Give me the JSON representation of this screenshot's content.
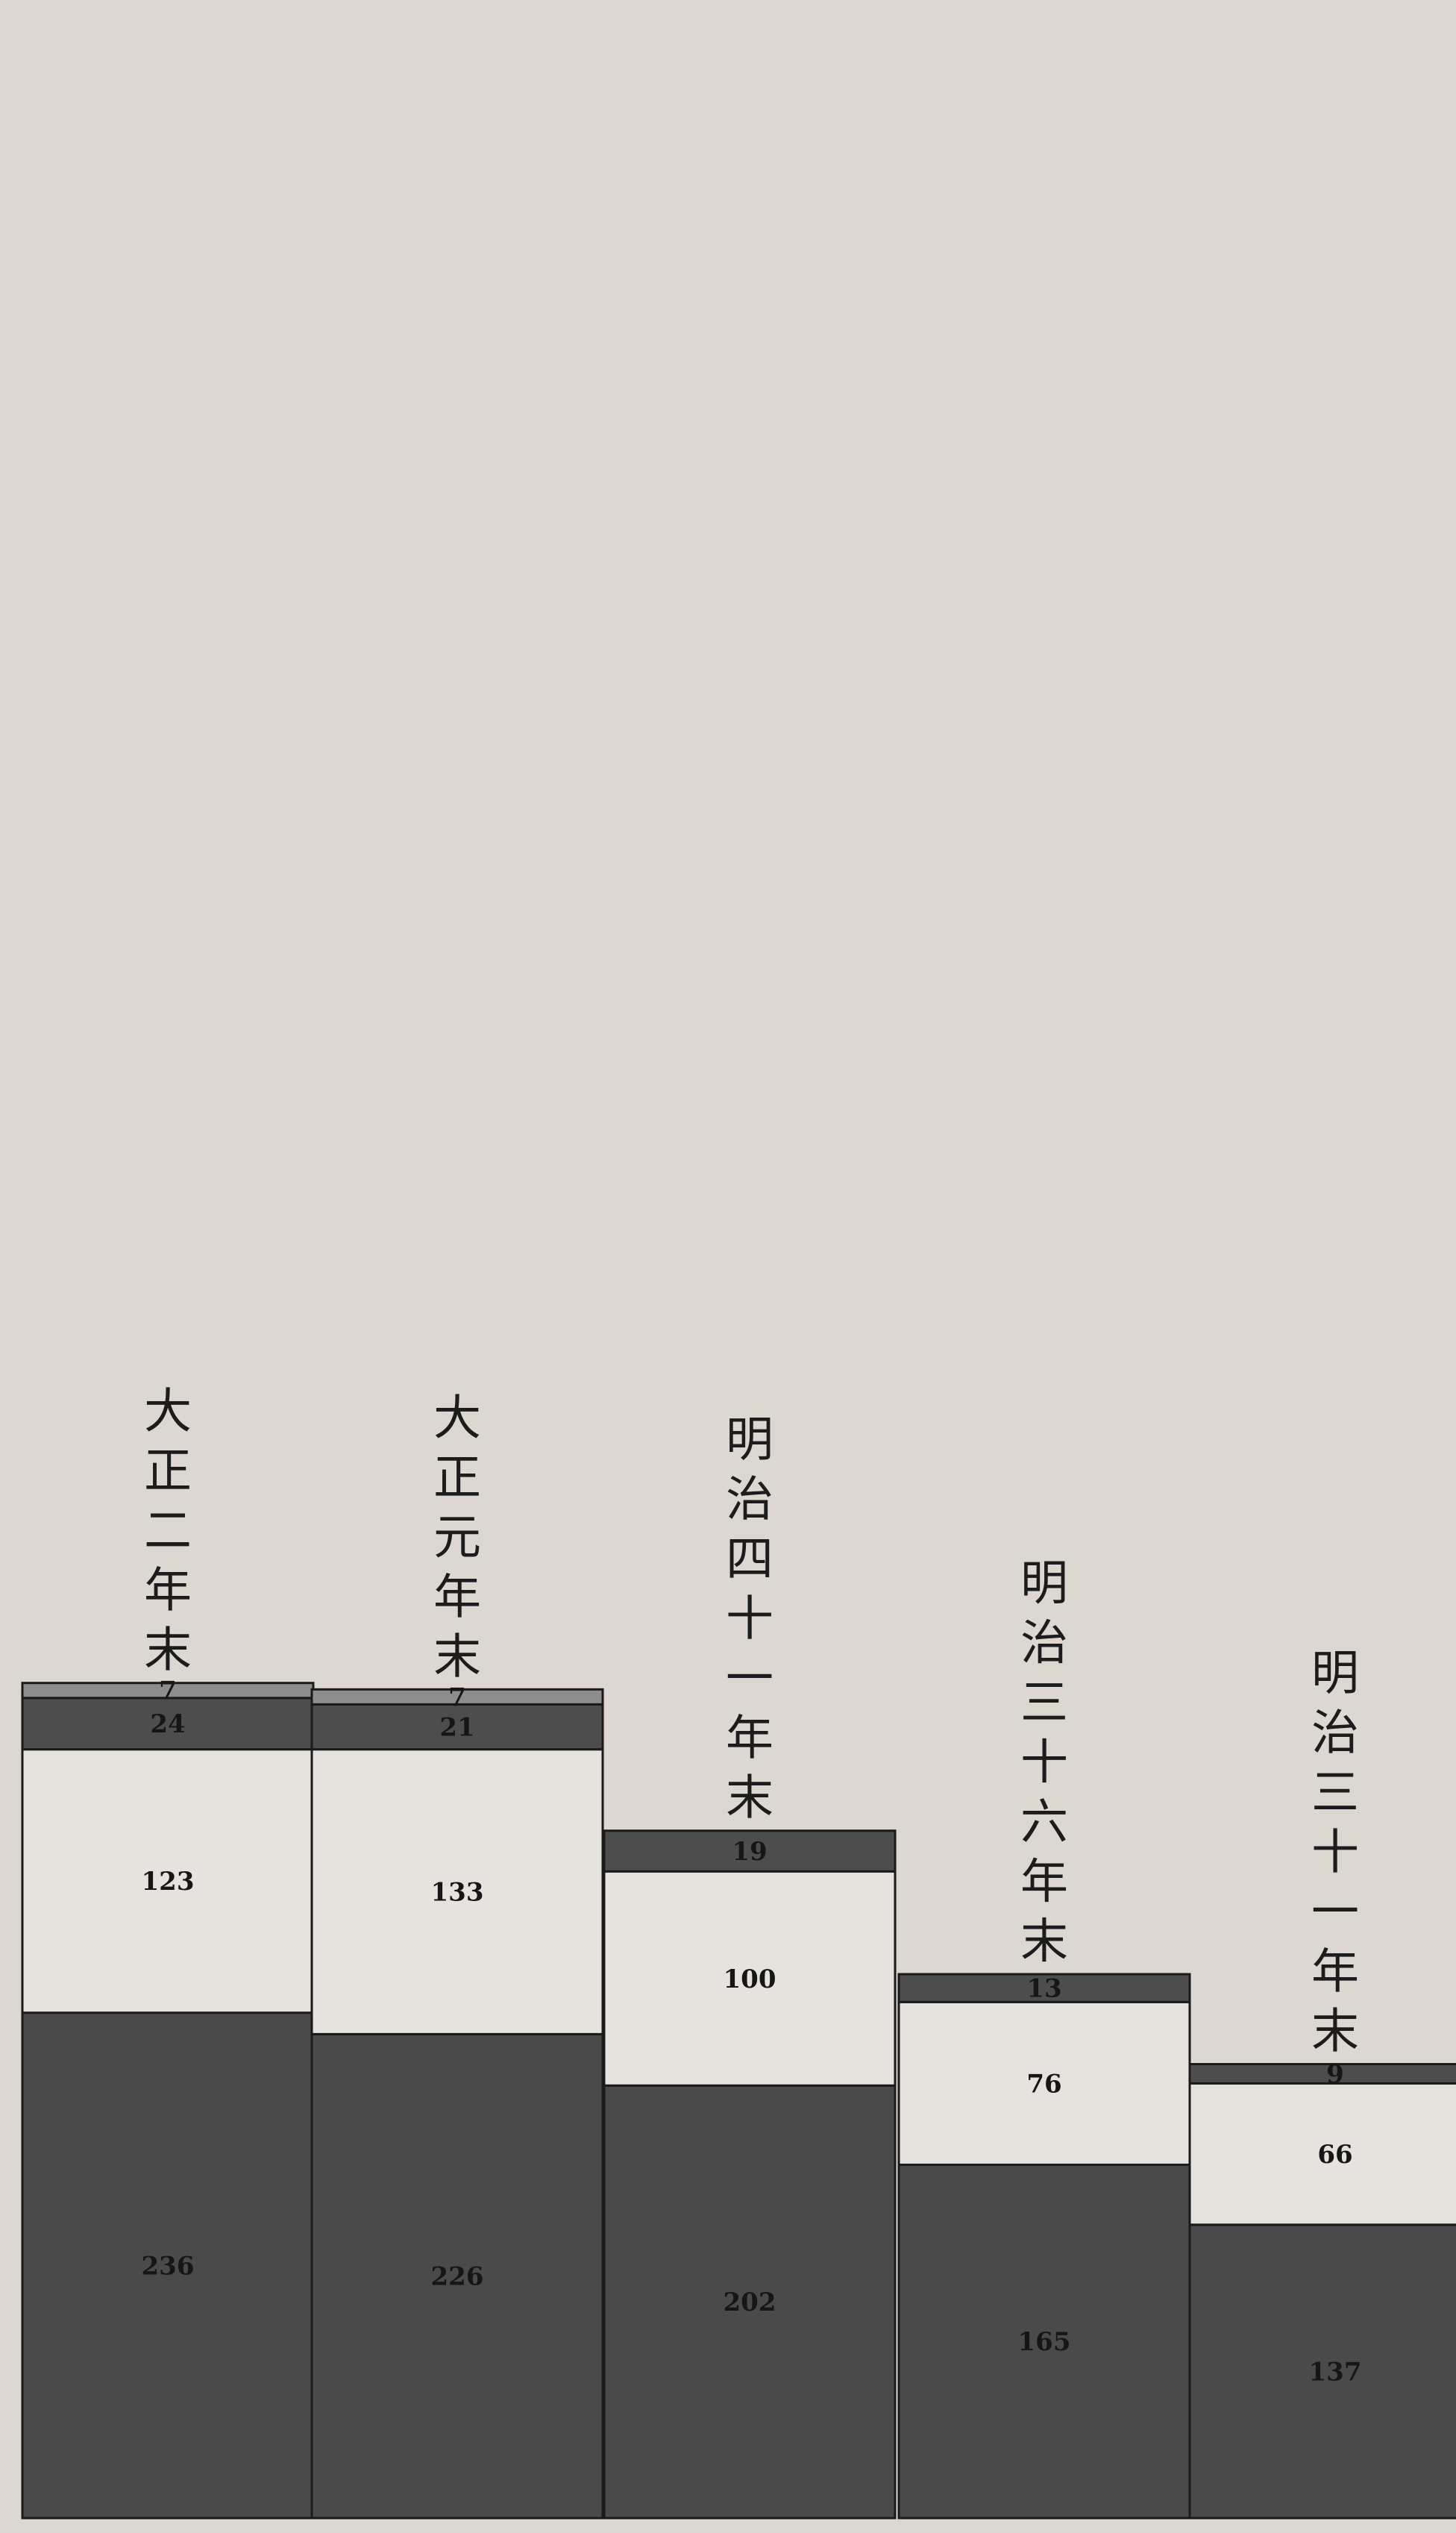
{
  "chart_data": {
    "type": "bar",
    "stacked": true,
    "orientation": "vertical",
    "categories": [
      "大正二年末",
      "大正元年末",
      "明治四十一年末",
      "明治三十六年末",
      "明治三十一年末"
    ],
    "series": [
      {
        "values": [
          236,
          226,
          202,
          165,
          137
        ],
        "color": "#4a4a4a",
        "value_labels": [
          "236",
          "226",
          "202",
          "165",
          "137"
        ]
      },
      {
        "values": [
          123,
          133,
          100,
          76,
          66
        ],
        "color": "#e6e3df",
        "value_labels": [
          "123",
          "133",
          "100",
          "76",
          "66"
        ]
      },
      {
        "values": [
          24,
          21,
          19,
          13,
          9
        ],
        "color": "#4d4d4d",
        "value_labels": [
          "24",
          "21",
          "19",
          "13",
          "9"
        ]
      },
      {
        "values": [
          7,
          7,
          null,
          null,
          null
        ],
        "color": "#8d8d8d",
        "value_labels": [
          "7",
          "7",
          "",
          "",
          ""
        ]
      }
    ],
    "ylim": [
      0,
      390
    ],
    "grid": false,
    "legend": "none",
    "title": "",
    "xlabel": "",
    "ylabel": ""
  }
}
